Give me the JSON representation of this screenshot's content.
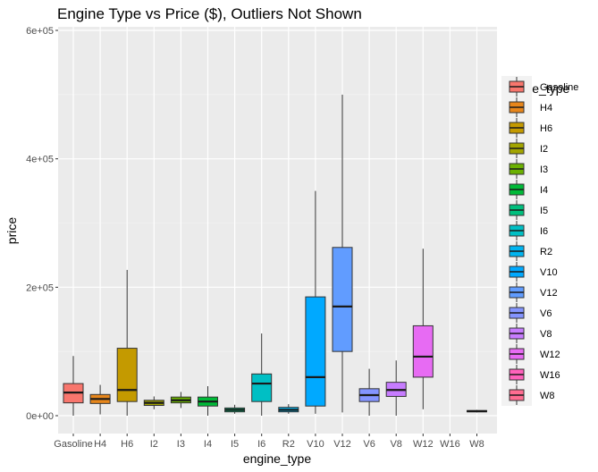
{
  "chart_data": {
    "type": "boxplot",
    "title": "Engine Type vs Price ($), Outliers Not Shown",
    "xlabel": "engine_type",
    "ylabel": "price",
    "ylim": [
      -28000,
      600000
    ],
    "yticks": [
      0,
      200000,
      400000,
      600000
    ],
    "ytick_labels": [
      "0e+00",
      "2e+05",
      "4e+05",
      "6e+05"
    ],
    "legend_title": "engine_type",
    "legend_position": "right",
    "grid": true,
    "categories": [
      {
        "name": "Gasoline",
        "color": "#F8766D",
        "min": 0,
        "q1": 20000,
        "median": 36000,
        "q3": 50000,
        "max": 93000
      },
      {
        "name": "H4",
        "color": "#E58700",
        "min": 2000,
        "q1": 19000,
        "median": 26000,
        "q3": 33000,
        "max": 48000
      },
      {
        "name": "H6",
        "color": "#C99800",
        "min": 0,
        "q1": 22000,
        "median": 40000,
        "q3": 105000,
        "max": 227000
      },
      {
        "name": "I2",
        "color": "#A3A500",
        "min": 10000,
        "q1": 16000,
        "median": 20000,
        "q3": 24000,
        "max": 30000
      },
      {
        "name": "I3",
        "color": "#6BB100",
        "min": 12000,
        "q1": 20000,
        "median": 24000,
        "q3": 29000,
        "max": 37000
      },
      {
        "name": "I4",
        "color": "#00BA38",
        "min": 0,
        "q1": 15000,
        "median": 22000,
        "q3": 29000,
        "max": 46000
      },
      {
        "name": "I5",
        "color": "#00BF7D",
        "min": 3000,
        "q1": 6000,
        "median": 9000,
        "q3": 12000,
        "max": 17000
      },
      {
        "name": "I6",
        "color": "#00C0AF",
        "min": 0,
        "q1": 22000,
        "median": 50000,
        "q3": 65000,
        "max": 128000
      },
      {
        "name": "R2",
        "color": "#00BCD8",
        "min": 3000,
        "q1": 6000,
        "median": 9000,
        "q3": 13000,
        "max": 18000
      },
      {
        "name": "V10",
        "color": "#00B0F6",
        "min": 3000,
        "q1": 15000,
        "median": 60000,
        "q3": 185000,
        "max": 350000
      },
      {
        "name": "V12",
        "color": "#619CFF",
        "min": 5000,
        "q1": 100000,
        "median": 170000,
        "q3": 262000,
        "max": 500000
      },
      {
        "name": "V6",
        "color": "#B983FF",
        "min": 0,
        "q1": 22000,
        "median": 32000,
        "q3": 42000,
        "max": 73000
      },
      {
        "name": "V8",
        "color": "#E76BF3",
        "min": 0,
        "q1": 30000,
        "median": 40000,
        "q3": 52000,
        "max": 86000
      },
      {
        "name": "W12",
        "color": "#FD61D1",
        "min": 10000,
        "q1": 60000,
        "median": 92000,
        "q3": 140000,
        "max": 260000
      },
      {
        "name": "W16",
        "color": "#FF67A4",
        "min": null,
        "q1": null,
        "median": null,
        "q3": null,
        "max": null
      },
      {
        "name": "W8",
        "color": "#FF6C91",
        "min": 5000,
        "q1": 6000,
        "median": 7000,
        "q3": 8000,
        "max": 9000
      }
    ],
    "box_fill_colors": [
      "#F8766D",
      "#E7861B",
      "#C49A00",
      "#A3A500",
      "#6BB100",
      "#00BA38",
      "#00BF7D",
      "#00BFC4",
      "#00B4F0",
      "#00A9FF",
      "#619CFF",
      "#8494FF",
      "#C77CFF",
      "#E76BF3",
      "#FF62BC",
      "#FF6C91"
    ]
  }
}
